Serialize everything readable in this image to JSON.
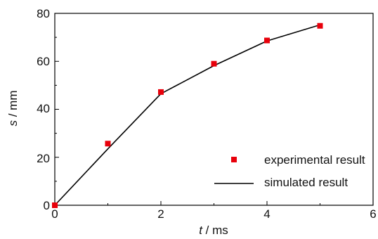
{
  "chart_data": {
    "type": "scatter",
    "xlabel": {
      "var": "t",
      "unit": " / ms"
    },
    "ylabel": {
      "var": "s",
      "unit": " / mm"
    },
    "xlim": [
      0,
      6
    ],
    "ylim": [
      0,
      80
    ],
    "xticks": [
      "0",
      "2",
      "4",
      "6"
    ],
    "yticks": [
      "0",
      "20",
      "40",
      "60",
      "80"
    ],
    "grid": false,
    "legend_position": "bottom-right",
    "series": [
      {
        "name": "experimental result",
        "kind": "markers",
        "color": "#e8000b",
        "x": [
          0,
          1,
          2,
          3,
          4,
          5
        ],
        "y": [
          0,
          25.7,
          47.2,
          59.0,
          68.7,
          74.8
        ]
      },
      {
        "name": "simulated result",
        "kind": "line",
        "color": "#000000",
        "x": [
          0,
          1,
          2,
          3,
          4,
          5
        ],
        "y": [
          0,
          23.5,
          46.5,
          58.2,
          68.5,
          75.2
        ]
      }
    ]
  }
}
